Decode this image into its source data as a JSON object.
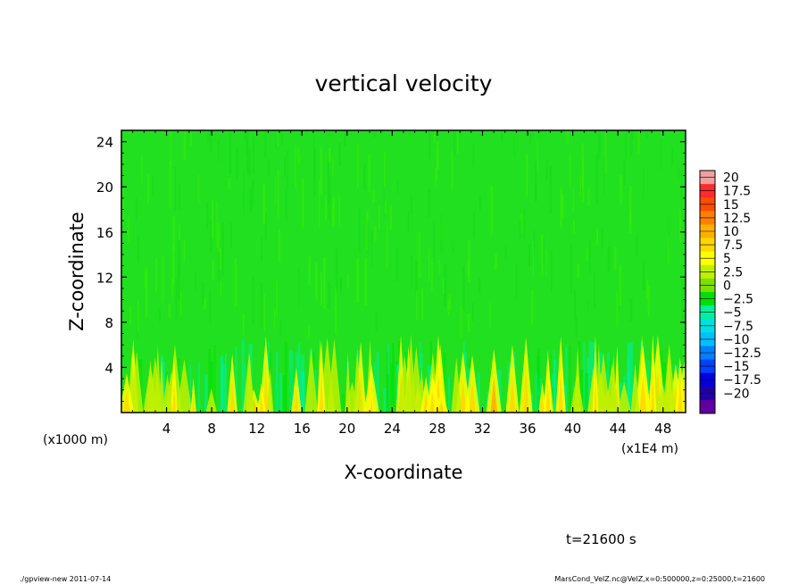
{
  "chart_data": {
    "type": "heatmap",
    "title": "vertical velocity",
    "xlabel": "X-coordinate",
    "ylabel": "Z-coordinate",
    "x_unit_label": "(x1E4 m)",
    "y_unit_label": "(x1000 m)",
    "x_ticks": [
      "4",
      "8",
      "12",
      "16",
      "20",
      "24",
      "28",
      "32",
      "36",
      "40",
      "44",
      "48"
    ],
    "y_ticks": [
      "4",
      "8",
      "12",
      "16",
      "20",
      "24"
    ],
    "xlim": [
      0,
      50
    ],
    "ylim": [
      0,
      25
    ],
    "grid": false,
    "legend": "right",
    "colorbar": {
      "labels": [
        "20",
        "17.5",
        "15",
        "12.5",
        "10",
        "7.5",
        "5",
        "2.5",
        "0",
        "−2.5",
        "−5",
        "−7.5",
        "−10",
        "−12.5",
        "−15",
        "−17.5",
        "−20"
      ],
      "colors": [
        "#f0a0a0",
        "#ff2a2a",
        "#ff4d00",
        "#ff8000",
        "#ffb000",
        "#ffd700",
        "#ffff00",
        "#c0f000",
        "#7ce000",
        "#00e000",
        "#00f0a0",
        "#00e0e0",
        "#00c0ff",
        "#0080ff",
        "#0040ff",
        "#0000e0",
        "#2000a0",
        "#6000a0"
      ]
    },
    "field_description_values": {
      "background_value": 0.3,
      "lower_layer_top_z": 6.5,
      "updraft_peak_max": 8,
      "downdraft_min": -5
    }
  },
  "time_label": "t=21600 s",
  "footer": {
    "left": "./gpview-new  2011-07-14",
    "right": "MarsCond_VelZ.nc@VelZ,x=0:500000,z=0:25000,t=21600"
  }
}
